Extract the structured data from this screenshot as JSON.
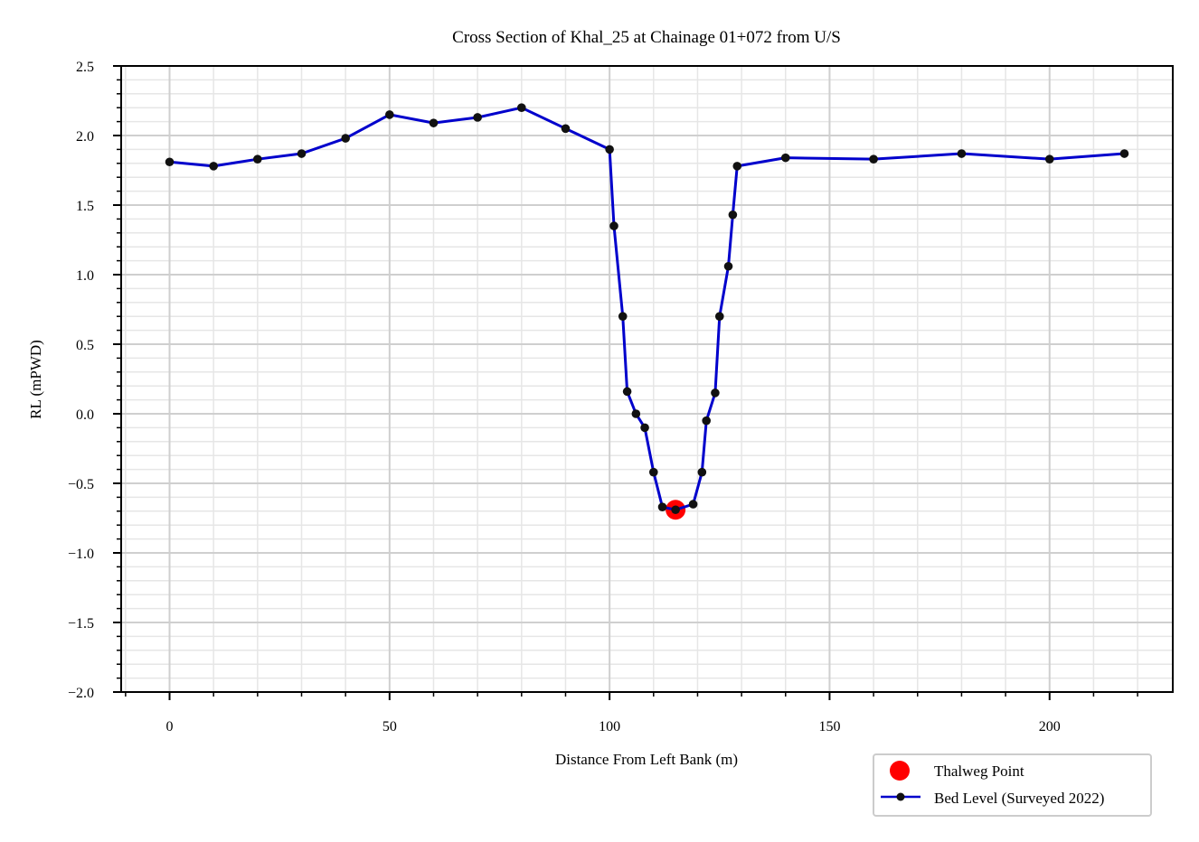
{
  "chart_data": {
    "type": "line",
    "title": "Cross Section of Khal_25 at Chainage 01+072 from U/S",
    "xlabel": "Distance From Left Bank (m)",
    "ylabel": "RL (mPWD)",
    "xlim": [
      -11,
      228
    ],
    "ylim": [
      -2.0,
      2.5
    ],
    "xticks": [
      0,
      50,
      100,
      150,
      200
    ],
    "xtick_labels": [
      "0",
      "50",
      "100",
      "150",
      "200"
    ],
    "yticks": [
      -2.0,
      -1.5,
      -1.0,
      -0.5,
      0.0,
      0.5,
      1.0,
      1.5,
      2.0,
      2.5
    ],
    "ytick_labels": [
      "−2.0",
      "−1.5",
      "−1.0",
      "−0.5",
      "0.0",
      "0.5",
      "1.0",
      "1.5",
      "2.0",
      "2.5"
    ],
    "grid": true,
    "legend_position": "bottom-right, below axes",
    "series": [
      {
        "name": "Bed Level (Surveyed 2022)",
        "color": "#0000cc",
        "marker_color": "#111111",
        "x": [
          0,
          10,
          20,
          30,
          40,
          50,
          60,
          70,
          80,
          90,
          100,
          101,
          103,
          104,
          106,
          108,
          110,
          112,
          115,
          119,
          121,
          122,
          124,
          125,
          127,
          128,
          129,
          140,
          160,
          180,
          200,
          217
        ],
        "y": [
          1.81,
          1.78,
          1.83,
          1.87,
          1.98,
          2.15,
          2.09,
          2.13,
          2.2,
          2.05,
          1.9,
          1.35,
          0.7,
          0.16,
          0.0,
          -0.1,
          -0.42,
          -0.67,
          -0.69,
          -0.65,
          -0.42,
          -0.05,
          0.15,
          0.7,
          1.06,
          1.43,
          1.78,
          1.84,
          1.83,
          1.87,
          1.83,
          1.87
        ]
      },
      {
        "name": "Thalweg Point",
        "color": "#ff0000",
        "x": [
          115
        ],
        "y": [
          -0.69
        ]
      }
    ]
  }
}
